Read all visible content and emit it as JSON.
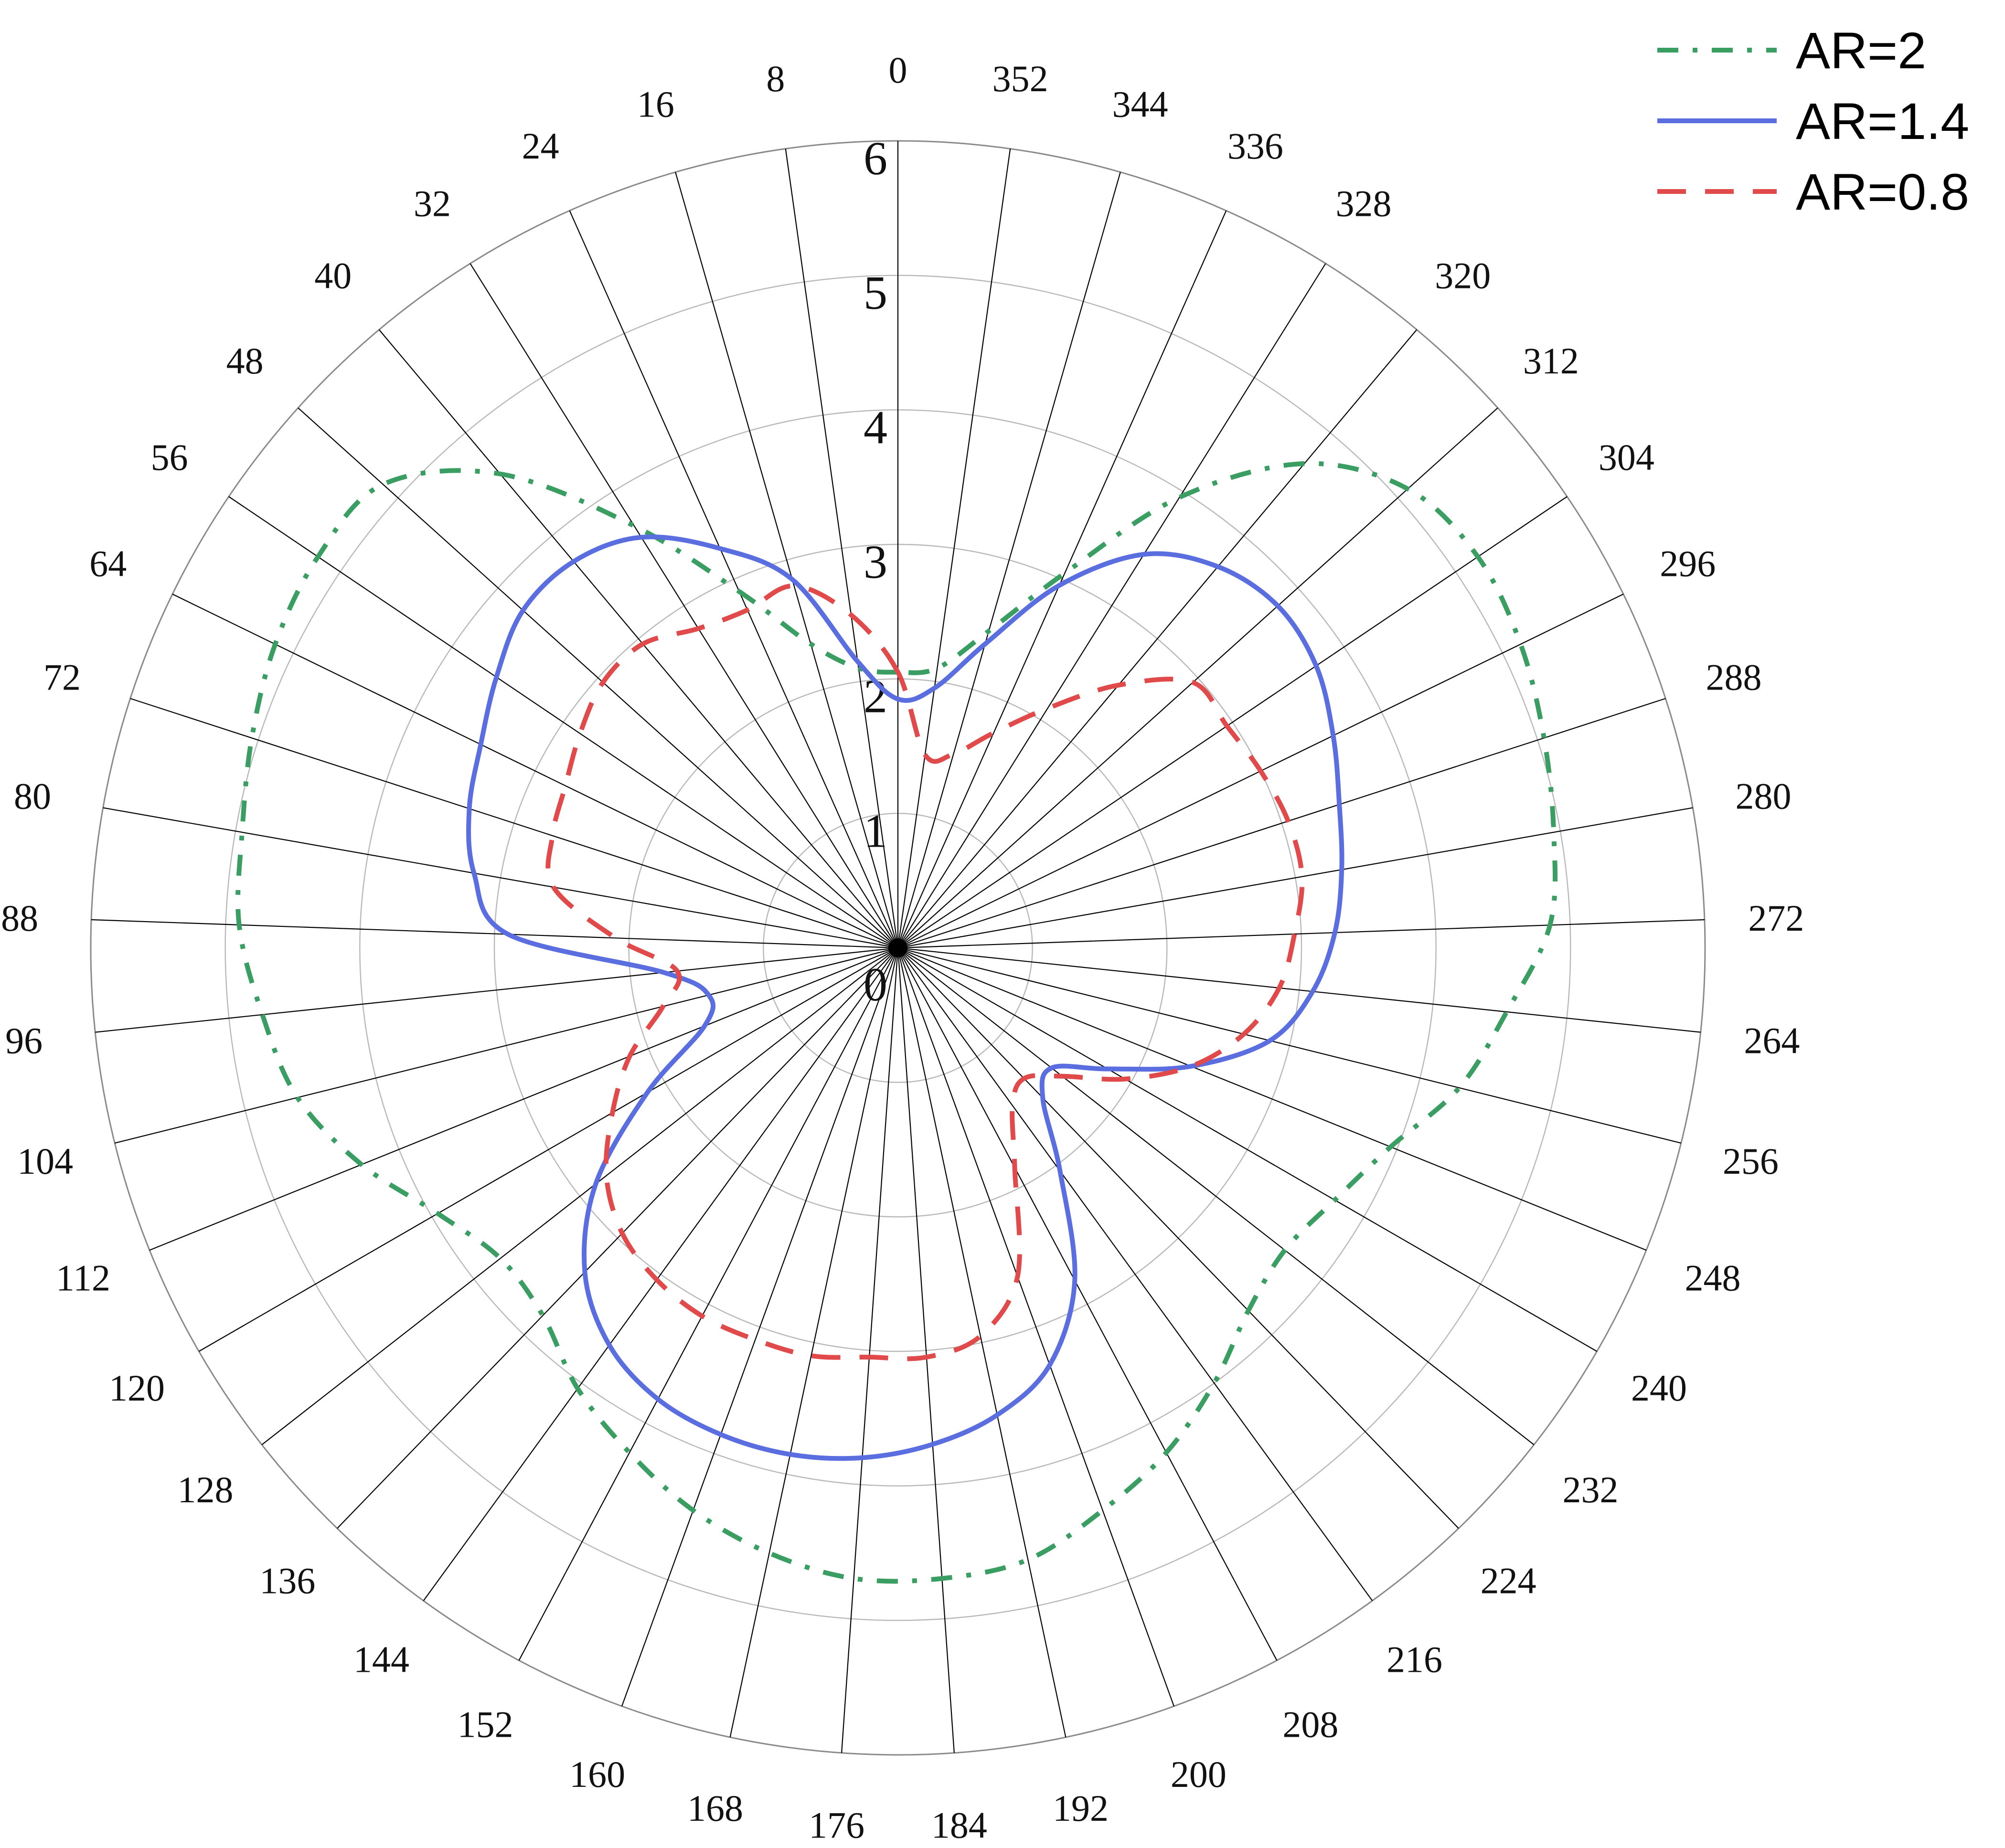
{
  "chart_data": {
    "type": "polar-line",
    "angle_direction": "counterclockwise",
    "zero_angle_at": "top",
    "angle_ticks": [
      0,
      8,
      16,
      24,
      32,
      40,
      48,
      56,
      64,
      72,
      80,
      88,
      96,
      104,
      112,
      120,
      128,
      136,
      144,
      152,
      160,
      168,
      176,
      184,
      192,
      200,
      208,
      216,
      224,
      232,
      240,
      248,
      256,
      264,
      272,
      280,
      288,
      296,
      304,
      312,
      320,
      328,
      336,
      344,
      352
    ],
    "angle_tick_labels": [
      "0",
      "8",
      "16",
      "24",
      "32",
      "40",
      "48",
      "56",
      "64",
      "72",
      "80",
      "88",
      "96",
      "104",
      "112",
      "120",
      "128",
      "136",
      "144",
      "152",
      "160",
      "168",
      "176",
      "184",
      "192",
      "200",
      "208",
      "216",
      "224",
      "232",
      "240",
      "248",
      "256",
      "264",
      "272",
      "280",
      "288",
      "296",
      "304",
      "312",
      "320",
      "328",
      "336",
      "344",
      "352"
    ],
    "radial_range": [
      0,
      6
    ],
    "radial_ticks": [
      0,
      1,
      2,
      3,
      4,
      5,
      6
    ],
    "radial_tick_labels": [
      "0",
      "1",
      "2",
      "3",
      "4",
      "5",
      "6"
    ],
    "legend_position": "top-right",
    "grid": true,
    "series": [
      {
        "name": "AR=2",
        "color": "#3a9e62",
        "dash": "dash-dot",
        "theta": [
          0,
          8,
          16,
          24,
          32,
          40,
          48,
          56,
          64,
          72,
          80,
          88,
          96,
          104,
          112,
          120,
          128,
          136,
          144,
          152,
          160,
          168,
          176,
          184,
          192,
          200,
          208,
          216,
          224,
          232,
          240,
          248,
          256,
          264,
          272,
          280,
          288,
          296,
          304,
          312,
          320,
          328,
          336,
          344,
          352,
          360
        ],
        "r": [
          2.05,
          2.1,
          2.35,
          2.9,
          3.7,
          4.6,
          5.15,
          5.2,
          5.15,
          5.05,
          4.95,
          4.9,
          4.75,
          4.6,
          4.3,
          3.95,
          3.75,
          3.8,
          4.05,
          4.25,
          4.45,
          4.6,
          4.7,
          4.7,
          4.65,
          4.45,
          4.25,
          4.0,
          3.75,
          3.65,
          3.75,
          3.95,
          4.3,
          4.55,
          4.85,
          4.95,
          5.05,
          5.15,
          5.2,
          5.1,
          4.7,
          3.95,
          3.05,
          2.45,
          2.1,
          2.05
        ]
      },
      {
        "name": "AR=1.4",
        "color": "#5a6ee0",
        "dash": "solid",
        "theta": [
          0,
          8,
          16,
          24,
          32,
          40,
          48,
          56,
          64,
          72,
          80,
          88,
          96,
          104,
          112,
          120,
          128,
          136,
          144,
          152,
          160,
          168,
          176,
          184,
          192,
          200,
          208,
          216,
          224,
          232,
          240,
          248,
          256,
          264,
          272,
          280,
          288,
          296,
          304,
          312,
          320,
          328,
          336,
          344,
          352,
          360
        ],
        "r": [
          1.85,
          2.15,
          2.85,
          3.25,
          3.6,
          3.75,
          3.75,
          3.6,
          3.45,
          3.35,
          3.2,
          2.9,
          1.75,
          1.45,
          1.55,
          2.15,
          2.85,
          3.35,
          3.65,
          3.8,
          3.85,
          3.85,
          3.8,
          3.7,
          3.55,
          3.3,
          2.8,
          2.05,
          1.55,
          1.45,
          1.8,
          2.35,
          2.85,
          3.1,
          3.25,
          3.35,
          3.45,
          3.6,
          3.75,
          3.8,
          3.7,
          3.45,
          2.95,
          2.35,
          1.95,
          1.85
        ]
      },
      {
        "name": "AR=0.8",
        "color": "#e04a4a",
        "dash": "dashed",
        "theta": [
          0,
          8,
          16,
          24,
          32,
          40,
          48,
          56,
          64,
          72,
          80,
          88,
          96,
          104,
          112,
          120,
          128,
          136,
          144,
          152,
          160,
          168,
          176,
          184,
          192,
          200,
          208,
          216,
          224,
          232,
          240,
          248,
          256,
          264,
          272,
          280,
          288,
          296,
          304,
          312,
          320,
          328,
          336,
          344,
          352,
          360
        ],
        "r": [
          2.05,
          2.5,
          2.8,
          2.75,
          2.8,
          2.95,
          2.95,
          2.85,
          2.75,
          2.7,
          2.6,
          2.1,
          1.65,
          1.8,
          2.15,
          2.45,
          2.75,
          2.95,
          3.05,
          3.1,
          3.1,
          3.1,
          3.05,
          3.05,
          2.95,
          2.6,
          1.85,
          1.45,
          1.35,
          1.55,
          1.95,
          2.35,
          2.65,
          2.85,
          2.95,
          3.05,
          3.05,
          3.0,
          2.95,
          2.95,
          2.55,
          2.1,
          1.75,
          1.5,
          1.45,
          2.05
        ]
      }
    ]
  }
}
